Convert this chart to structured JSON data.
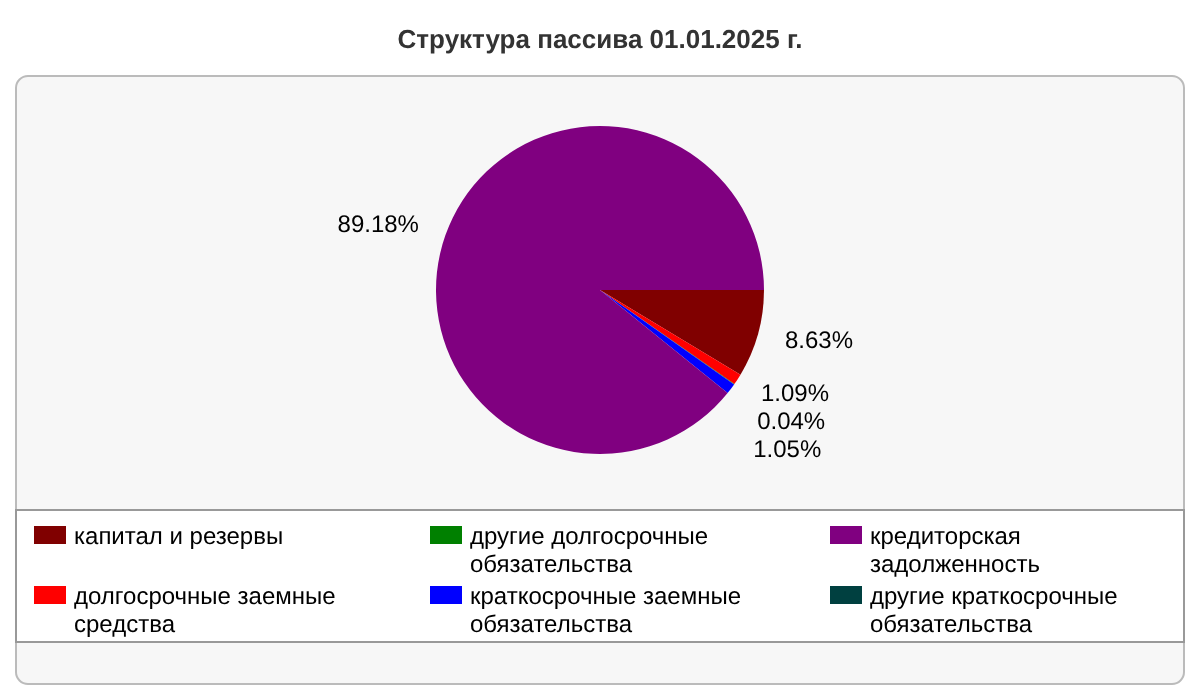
{
  "chart_data": {
    "type": "pie",
    "title": "Структура пассива 01.01.2025 г.",
    "categories": [
      "капитал и резервы",
      "долгосрочные заемные средства",
      "другие долгосрочные обязательства",
      "краткосрочные заемные обязательства",
      "кредиторская задолженность",
      "другие краткосрочные обязательства"
    ],
    "values": [
      8.63,
      1.09,
      0.04,
      1.05,
      89.18,
      0
    ],
    "colors": [
      "#800000",
      "#ff0000",
      "#008000",
      "#0000ff",
      "#800080",
      "#004040"
    ],
    "value_labels": [
      "8.63%",
      "1.09%",
      "0.04%",
      "1.05%",
      "89.18%",
      null
    ],
    "legend": "bottom"
  }
}
